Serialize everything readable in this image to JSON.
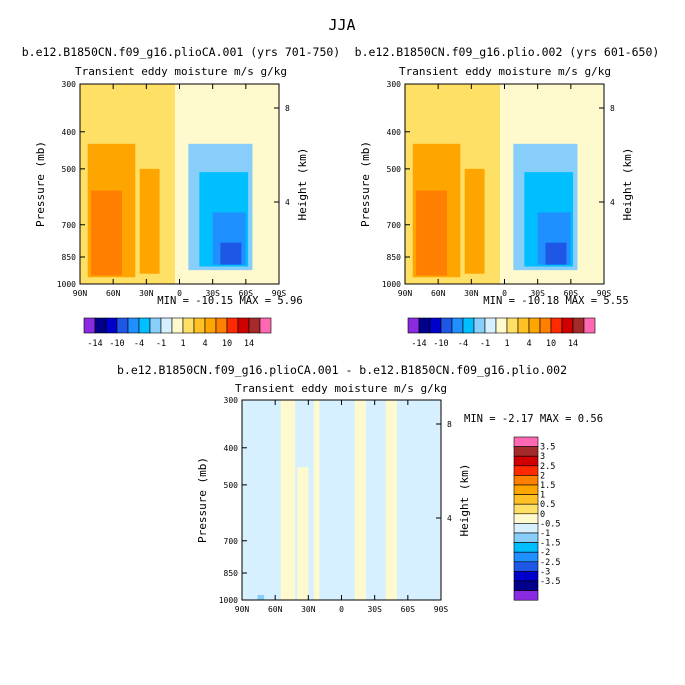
{
  "figure": {
    "title": "JJA"
  },
  "chart_data": [
    {
      "type": "heatmap",
      "title": "b.e12.B1850CN.f09_g16.plioCA.001 (yrs 701-750)",
      "subtitle": "Transient eddy moisture m/s g/kg",
      "xlabel": "",
      "ylabel": "Pressure (mb)",
      "y2label": "Height (km)",
      "x_ticks": [
        "90N",
        "60N",
        "30N",
        "0",
        "30S",
        "60S",
        "90S"
      ],
      "x_values": [
        90,
        60,
        30,
        0,
        -30,
        -60,
        -90
      ],
      "y_ticks": [
        "300",
        "400",
        "500",
        "700",
        "850",
        "1000"
      ],
      "y_values": [
        300,
        400,
        500,
        700,
        850,
        1000
      ],
      "y2_ticks": [
        "8",
        "4"
      ],
      "stats_text": "MIN = -10.15   MAX =    5.96",
      "min": -10.15,
      "max": 5.96,
      "regions": [
        {
          "lat_range": [
            90,
            4
          ],
          "p_range": [
            300,
            1000
          ],
          "value": 0.5
        },
        {
          "lat_range": [
            4,
            -90
          ],
          "p_range": [
            300,
            1000
          ],
          "value": -0.5
        },
        {
          "lat_range": [
            83,
            40
          ],
          "p_range": [
            430,
            960
          ],
          "value": 2
        },
        {
          "lat_range": [
            36,
            18
          ],
          "p_range": [
            500,
            940
          ],
          "value": 2
        },
        {
          "lat_range": [
            80,
            52
          ],
          "p_range": [
            570,
            950
          ],
          "value": 4
        },
        {
          "lat_range": [
            -8,
            -66
          ],
          "p_range": [
            430,
            920
          ],
          "value": -1.5
        },
        {
          "lat_range": [
            -18,
            -62
          ],
          "p_range": [
            510,
            900
          ],
          "value": -4
        },
        {
          "lat_range": [
            -30,
            -60
          ],
          "p_range": [
            650,
            890
          ],
          "value": -7
        },
        {
          "lat_range": [
            -37,
            -56
          ],
          "p_range": [
            780,
            890
          ],
          "value": -10
        }
      ]
    },
    {
      "type": "heatmap",
      "title": "b.e12.B1850CN.f09_g16.plio.002 (yrs 601-650)",
      "subtitle": "Transient eddy moisture m/s g/kg",
      "xlabel": "",
      "ylabel": "Pressure (mb)",
      "y2label": "Height (km)",
      "x_ticks": [
        "90N",
        "60N",
        "30N",
        "0",
        "30S",
        "60S",
        "90S"
      ],
      "x_values": [
        90,
        60,
        30,
        0,
        -30,
        -60,
        -90
      ],
      "y_ticks": [
        "300",
        "400",
        "500",
        "700",
        "850",
        "1000"
      ],
      "y_values": [
        300,
        400,
        500,
        700,
        850,
        1000
      ],
      "y2_ticks": [
        "8",
        "4"
      ],
      "stats_text": "MIN = -10.18   MAX =    5.55",
      "min": -10.18,
      "max": 5.55,
      "regions": [
        {
          "lat_range": [
            90,
            4
          ],
          "p_range": [
            300,
            1000
          ],
          "value": 0.5
        },
        {
          "lat_range": [
            4,
            -90
          ],
          "p_range": [
            300,
            1000
          ],
          "value": -0.5
        },
        {
          "lat_range": [
            83,
            40
          ],
          "p_range": [
            430,
            960
          ],
          "value": 2
        },
        {
          "lat_range": [
            36,
            18
          ],
          "p_range": [
            500,
            940
          ],
          "value": 2
        },
        {
          "lat_range": [
            80,
            52
          ],
          "p_range": [
            570,
            950
          ],
          "value": 4
        },
        {
          "lat_range": [
            -8,
            -66
          ],
          "p_range": [
            430,
            920
          ],
          "value": -1.5
        },
        {
          "lat_range": [
            -18,
            -62
          ],
          "p_range": [
            510,
            900
          ],
          "value": -4
        },
        {
          "lat_range": [
            -30,
            -60
          ],
          "p_range": [
            650,
            890
          ],
          "value": -7
        },
        {
          "lat_range": [
            -37,
            -56
          ],
          "p_range": [
            780,
            890
          ],
          "value": -10
        }
      ]
    },
    {
      "type": "heatmap",
      "title": "b.e12.B1850CN.f09_g16.plioCA.001 - b.e12.B1850CN.f09_g16.plio.002",
      "subtitle": "Transient eddy moisture m/s g/kg",
      "xlabel": "",
      "ylabel": "Pressure (mb)",
      "y2label": "Height (km)",
      "x_ticks": [
        "90N",
        "60N",
        "30N",
        "0",
        "30S",
        "60S",
        "90S"
      ],
      "x_values": [
        90,
        60,
        30,
        0,
        -30,
        -60,
        -90
      ],
      "y_ticks": [
        "300",
        "400",
        "500",
        "700",
        "850",
        "1000"
      ],
      "y_values": [
        300,
        400,
        500,
        700,
        850,
        1000
      ],
      "y2_ticks": [
        "8",
        "4"
      ],
      "stats_text": "MIN =  -2.17   MAX =    0.56",
      "min": -2.17,
      "max": 0.56,
      "regions": [
        {
          "lat_range": [
            90,
            -90
          ],
          "p_range": [
            300,
            1000
          ],
          "value": -0.25
        },
        {
          "lat_range": [
            55,
            42
          ],
          "p_range": [
            300,
            1000
          ],
          "value": 0.25
        },
        {
          "lat_range": [
            40,
            30
          ],
          "p_range": [
            450,
            1000
          ],
          "value": 0.25
        },
        {
          "lat_range": [
            25,
            20
          ],
          "p_range": [
            300,
            1000
          ],
          "value": 0.25
        },
        {
          "lat_range": [
            -12,
            -22
          ],
          "p_range": [
            300,
            1000
          ],
          "value": 0.25
        },
        {
          "lat_range": [
            -40,
            -50
          ],
          "p_range": [
            300,
            1000
          ],
          "value": 0.25
        },
        {
          "lat_range": [
            76,
            70
          ],
          "p_range": [
            970,
            1000
          ],
          "value": -1
        }
      ]
    }
  ],
  "colorbar_main": {
    "colors": [
      "#8a2be2",
      "#00008b",
      "#0000cd",
      "#1e56e6",
      "#1e90ff",
      "#00bfff",
      "#87cefa",
      "#d6f0ff",
      "#fffacd",
      "#ffe066",
      "#ffc125",
      "#ffa500",
      "#ff7f00",
      "#ff2a00",
      "#d10000",
      "#a52a2a",
      "#ff69b4"
    ],
    "labels": [
      "-14",
      "-10",
      "-4",
      "-1",
      "1",
      "4",
      "10",
      "14"
    ]
  },
  "colorbar_diff": {
    "colors": [
      "#8a2be2",
      "#00008b",
      "#0000cd",
      "#1e56e6",
      "#1e90ff",
      "#00bfff",
      "#87cefa",
      "#d6f0ff",
      "#fffacd",
      "#ffe066",
      "#ffc125",
      "#ffa500",
      "#ff7f00",
      "#ff2a00",
      "#d10000",
      "#a52a2a",
      "#ff69b4"
    ],
    "labels": [
      "3.5",
      "3",
      "2.5",
      "2",
      "1.5",
      "1",
      "0.5",
      "0",
      "-0.5",
      "-1",
      "-1.5",
      "-2",
      "-2.5",
      "-3",
      "-3.5"
    ]
  }
}
